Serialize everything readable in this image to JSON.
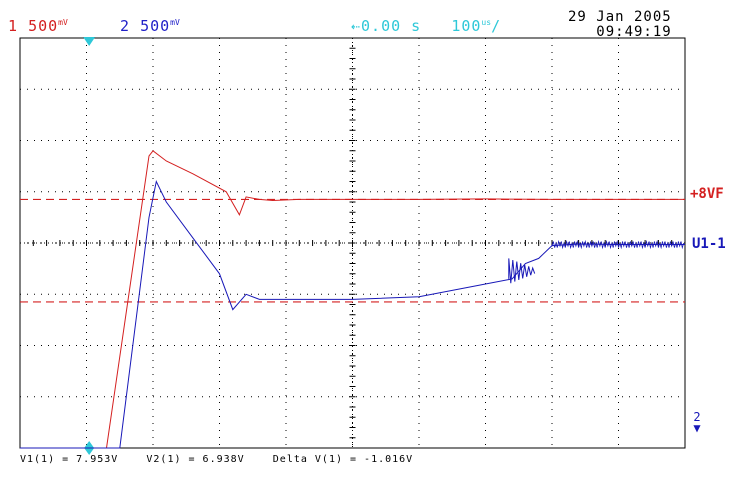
{
  "header": {
    "ch1": {
      "num": "1",
      "value": "500",
      "unit_top": "m",
      "unit_bottom": "V"
    },
    "ch2": {
      "num": "2",
      "value": "500",
      "unit_top": "m",
      "unit_bottom": "V"
    },
    "timebase": {
      "offset": "0.00 s",
      "per_div": "100",
      "unit_top": "u",
      "unit_bottom": "s"
    },
    "date": "29 Jan 2005",
    "time": "09:49:19"
  },
  "labels": {
    "ref_line": "+8VF",
    "ch2_trace": "U1-1"
  },
  "cursor_readout": {
    "v1": "V1(1) = 7.953V",
    "v2": "V2(1) = 6.938V",
    "delta": "Delta V(1) = -1.016V"
  },
  "ch2_marker": "2",
  "colors": {
    "ch1": "#d42020",
    "ch2": "#1818b8",
    "trigger": "#2ec8d8",
    "grid": "#000000"
  },
  "chart_data": {
    "type": "line",
    "x_divisions": 10,
    "y_divisions": 8,
    "series": [
      {
        "name": "1",
        "x": [
          0,
          1.0,
          1.3,
          1.94,
          2.0,
          2.2,
          2.6,
          3.1,
          3.3,
          3.4,
          3.6,
          3.8,
          4.2,
          5,
          6,
          7,
          8,
          9,
          10
        ],
        "y": [
          -4.0,
          -4.0,
          -4.0,
          1.7,
          1.8,
          1.6,
          1.35,
          1.0,
          0.55,
          0.9,
          0.85,
          0.83,
          0.85,
          0.85,
          0.85,
          0.86,
          0.85,
          0.85,
          0.85
        ]
      },
      {
        "name": "2",
        "x": [
          0,
          1.0,
          1.5,
          1.94,
          2.05,
          2.2,
          2.6,
          3.0,
          3.2,
          3.4,
          3.6,
          3.8,
          4.2,
          5,
          6,
          7,
          7.4,
          7.6,
          7.8,
          8.0,
          8.4,
          9,
          10
        ],
        "y": [
          -4.0,
          -4.0,
          -4.0,
          0.5,
          1.2,
          0.8,
          0.1,
          -0.6,
          -1.3,
          -1.0,
          -1.1,
          -1.1,
          -1.1,
          -1.1,
          -1.05,
          -0.8,
          -0.7,
          -0.4,
          -0.3,
          -0.05,
          -0.02,
          -0.03,
          -0.03
        ]
      }
    ],
    "reference_lines": [
      {
        "level": 0.85
      },
      {
        "level": -1.15
      }
    ]
  }
}
